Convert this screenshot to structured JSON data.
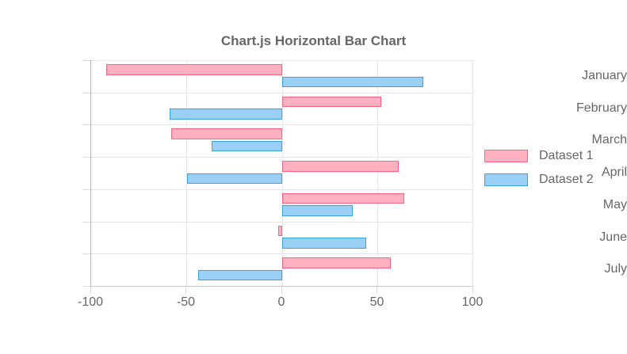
{
  "page": {
    "background": "#ffffff",
    "text_color": "#666666"
  },
  "chart_data": {
    "type": "bar",
    "orientation": "horizontal",
    "title": "Chart.js Horizontal Bar Chart",
    "categories": [
      "January",
      "February",
      "March",
      "April",
      "May",
      "June",
      "July"
    ],
    "series": [
      {
        "name": "Dataset 1",
        "fill_color": "#FFB1C1",
        "border_color": "#FF6384",
        "values": [
          -92,
          52,
          -58,
          61,
          64,
          -2,
          57
        ]
      },
      {
        "name": "Dataset 2",
        "fill_color": "#9AD0F5",
        "border_color": "#36A2EB",
        "values": [
          74,
          -59,
          -37,
          -50,
          37,
          44,
          -44
        ]
      }
    ],
    "x_ticks": [
      -100,
      -50,
      0,
      50,
      100
    ],
    "xlim": [
      -100,
      100
    ],
    "xlabel": "",
    "ylabel": "",
    "grid": true,
    "legend_position": "right",
    "grid_color": "#e6e6e6",
    "axis_line_color": "#b5b5b5"
  }
}
